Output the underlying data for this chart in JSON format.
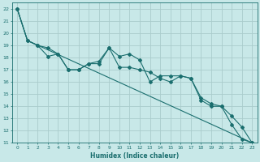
{
  "xlabel": "Humidex (Indice chaleur)",
  "bg_color": "#c8e8e8",
  "grid_color": "#aacccc",
  "line_color": "#1a6e6e",
  "xlim": [
    -0.5,
    23.5
  ],
  "ylim": [
    11,
    22.5
  ],
  "xticks": [
    0,
    1,
    2,
    3,
    4,
    5,
    6,
    7,
    8,
    9,
    10,
    11,
    12,
    13,
    14,
    15,
    16,
    17,
    18,
    19,
    20,
    21,
    22,
    23
  ],
  "yticks": [
    11,
    12,
    13,
    14,
    15,
    16,
    17,
    18,
    19,
    20,
    21,
    22
  ],
  "series1_x": [
    0,
    1,
    2,
    3,
    4,
    5,
    6,
    7,
    8,
    9,
    10,
    11,
    12,
    13,
    14,
    15,
    16,
    17,
    18,
    19,
    20,
    21,
    22,
    23
  ],
  "series1_y": [
    22,
    19.4,
    19.0,
    18.1,
    18.3,
    17.0,
    17.0,
    17.5,
    17.5,
    18.8,
    18.1,
    18.3,
    17.8,
    16.0,
    16.5,
    16.5,
    16.5,
    16.3,
    14.5,
    14.0,
    14.0,
    12.5,
    11.3,
    11.0
  ],
  "series2_x": [
    0,
    1,
    2,
    3,
    4,
    5,
    6,
    7,
    8,
    9,
    10,
    11,
    12,
    13,
    14,
    15,
    16,
    17,
    18,
    19,
    20,
    21,
    22,
    23
  ],
  "series2_y": [
    22,
    19.4,
    19.0,
    18.8,
    18.3,
    17.0,
    17.0,
    17.5,
    17.7,
    18.8,
    17.2,
    17.2,
    17.0,
    16.8,
    16.3,
    16.0,
    16.5,
    16.3,
    14.7,
    14.2,
    14.0,
    13.2,
    12.3,
    11.0
  ],
  "series3_x": [
    0,
    1,
    23
  ],
  "series3_y": [
    22,
    19.4,
    11.0
  ]
}
